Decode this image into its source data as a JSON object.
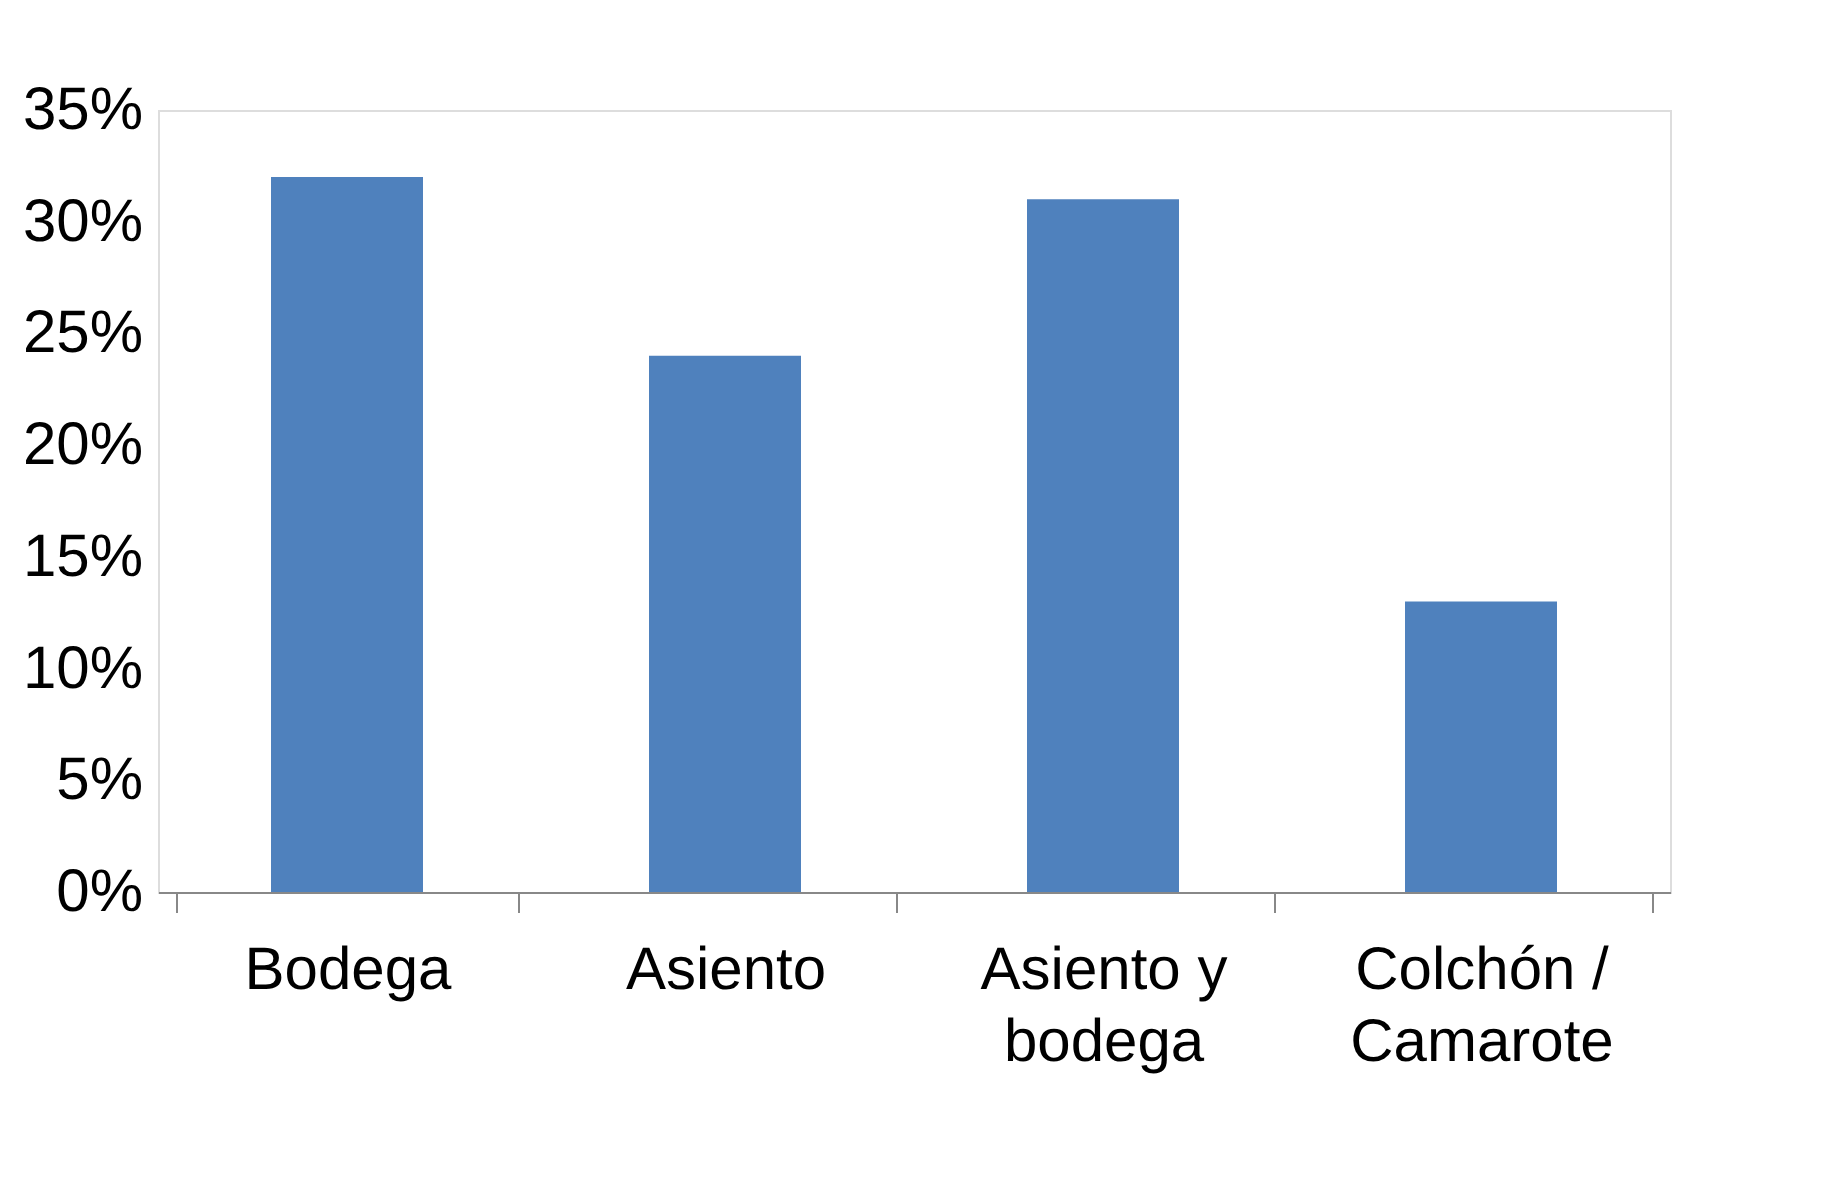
{
  "chart_data": {
    "type": "bar",
    "categories": [
      "Bodega",
      "Asiento",
      "Asiento y bodega",
      "Colchón / Camarote"
    ],
    "values": [
      32,
      24,
      31,
      13
    ],
    "color": "#4f81bd",
    "ylim": [
      0,
      35
    ],
    "yticks": [
      {
        "value": 0,
        "label": "0%"
      },
      {
        "value": 5,
        "label": "5%"
      },
      {
        "value": 10,
        "label": "10%"
      },
      {
        "value": 15,
        "label": "15%"
      },
      {
        "value": 20,
        "label": "20%"
      },
      {
        "value": 25,
        "label": "25%"
      },
      {
        "value": 30,
        "label": "30%"
      },
      {
        "value": 35,
        "label": "35%"
      }
    ],
    "grid": false
  }
}
